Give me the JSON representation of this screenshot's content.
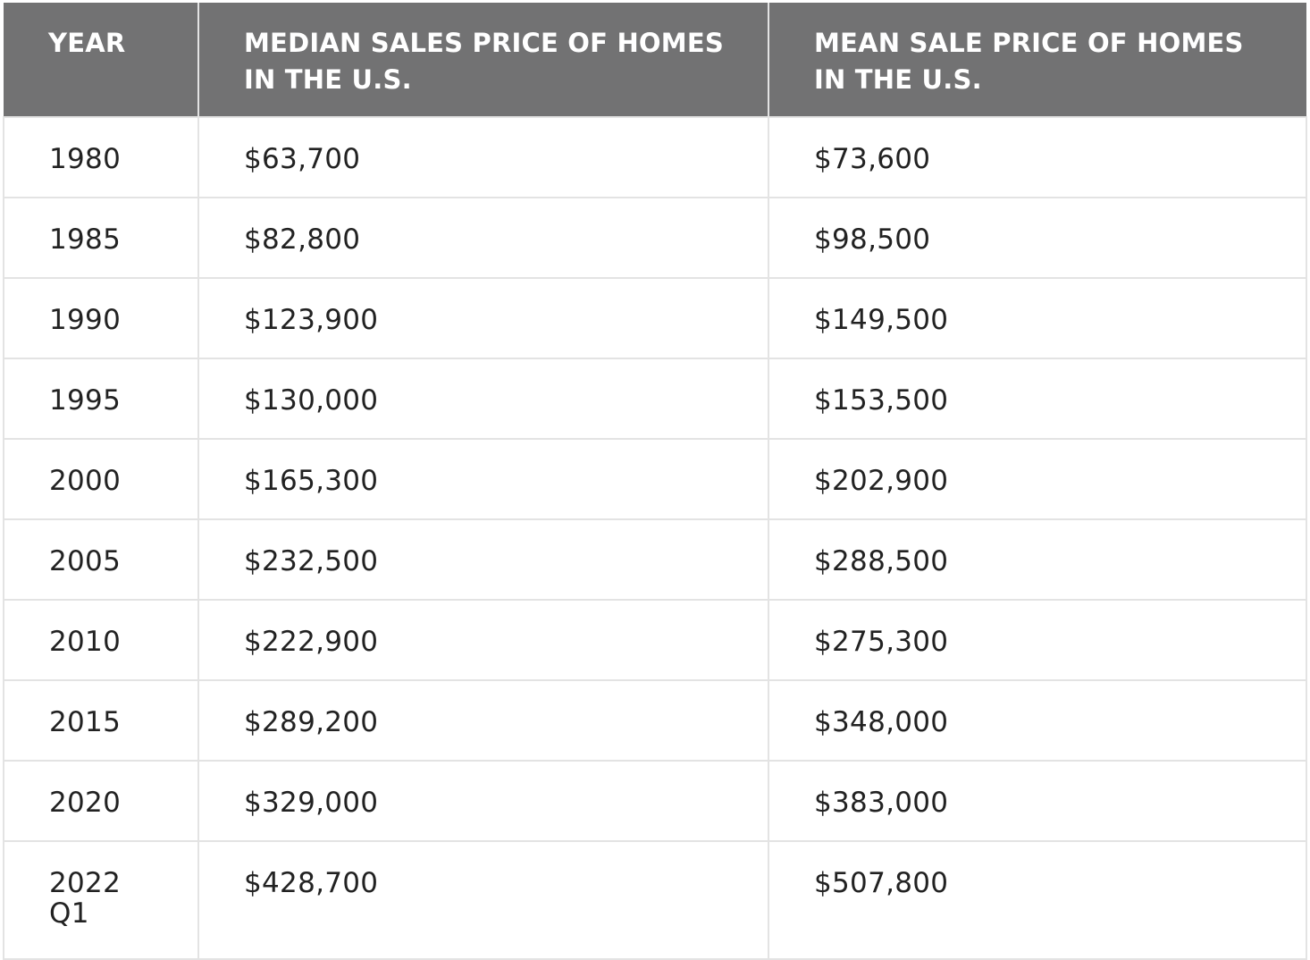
{
  "chart_data": {
    "type": "table",
    "columns": [
      "YEAR",
      "MEDIAN SALES PRICE OF HOMES IN THE U.S.",
      "MEAN SALE PRICE OF HOMES IN THE U.S."
    ],
    "header_lines": [
      [
        "YEAR"
      ],
      [
        "MEDIAN SALES PRICE OF HOMES",
        "IN THE U.S."
      ],
      [
        "MEAN SALE PRICE OF HOMES",
        "IN THE U.S."
      ]
    ],
    "rows": [
      {
        "year": [
          "1980"
        ],
        "median": "$63,700",
        "mean": "$73,600"
      },
      {
        "year": [
          "1985"
        ],
        "median": "$82,800",
        "mean": "$98,500"
      },
      {
        "year": [
          "1990"
        ],
        "median": "$123,900",
        "mean": "$149,500"
      },
      {
        "year": [
          "1995"
        ],
        "median": "$130,000",
        "mean": "$153,500"
      },
      {
        "year": [
          "2000"
        ],
        "median": "$165,300",
        "mean": "$202,900"
      },
      {
        "year": [
          "2005"
        ],
        "median": "$232,500",
        "mean": "$288,500"
      },
      {
        "year": [
          "2010"
        ],
        "median": "$222,900",
        "mean": "$275,300"
      },
      {
        "year": [
          "2015"
        ],
        "median": "$289,200",
        "mean": "$348,000"
      },
      {
        "year": [
          "2020"
        ],
        "median": "$329,000",
        "mean": "$383,000"
      },
      {
        "year": [
          "2022",
          "Q1"
        ],
        "median": "$428,700",
        "mean": "$507,800"
      }
    ],
    "colors": {
      "header_bg": "#727273",
      "header_text": "#ffffff",
      "grid": "#e3e3e3",
      "cell_text": "#222222"
    }
  }
}
